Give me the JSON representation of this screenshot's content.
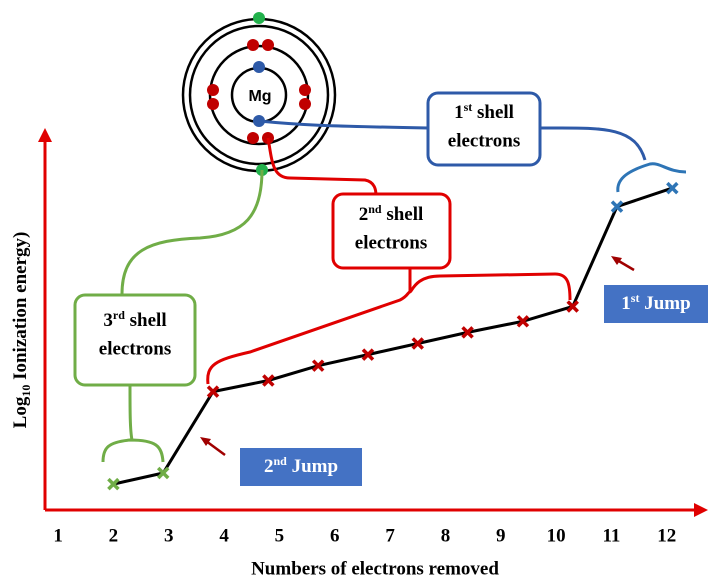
{
  "chart_data": {
    "type": "line",
    "x_label": "Numbers of electrons removed",
    "y_label": {
      "prefix": "Log",
      "subscript": "10",
      "text": " Ionization energy)"
    },
    "xlim": [
      0.8,
      12.6
    ],
    "xticks": [
      1,
      2,
      3,
      4,
      5,
      6,
      7,
      8,
      9,
      10,
      11,
      12
    ],
    "ylim": [
      0,
      10
    ],
    "x": [
      2,
      2.9,
      3.8,
      4.8,
      5.7,
      6.6,
      7.5,
      8.4,
      9.4,
      10.3,
      11.1,
      12.1
    ],
    "values": [
      0.7,
      1.0,
      3.2,
      3.5,
      3.9,
      4.2,
      4.5,
      4.8,
      5.1,
      5.5,
      8.2,
      8.7
    ],
    "line_color": "#000000",
    "marker_colors": [
      "#70ad47",
      "#70ad47",
      "#c00000",
      "#c00000",
      "#c00000",
      "#c00000",
      "#c00000",
      "#c00000",
      "#c00000",
      "#c00000",
      "#2e75b6",
      "#2e75b6"
    ],
    "axis_color": "#e00000",
    "atom_label": "Mg",
    "shell_labels": [
      {
        "ordinal": "1",
        "suffix": "st",
        "line1": " shell",
        "line2": "electrons"
      },
      {
        "ordinal": "2",
        "suffix": "nd",
        "line1": " shell",
        "line2": "electrons"
      },
      {
        "ordinal": "3",
        "suffix": "rd",
        "line1": " shell",
        "line2": "electrons"
      }
    ],
    "jump_labels": [
      {
        "ordinal": "1",
        "suffix": "st",
        "text": " Jump"
      },
      {
        "ordinal": "2",
        "suffix": "nd",
        "text": " Jump"
      }
    ]
  }
}
